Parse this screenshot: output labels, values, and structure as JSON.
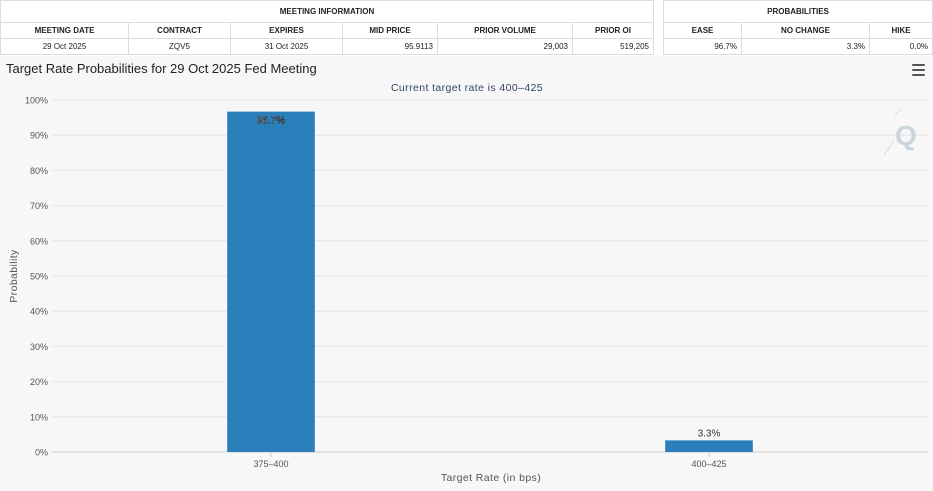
{
  "meeting_info": {
    "header": "MEETING INFORMATION",
    "columns": [
      "MEETING DATE",
      "CONTRACT",
      "EXPIRES",
      "MID PRICE",
      "PRIOR VOLUME",
      "PRIOR OI"
    ],
    "row": [
      "29 Oct 2025",
      "ZQV5",
      "31 Oct 2025",
      "95.9113",
      "29,003",
      "519,205"
    ]
  },
  "probabilities": {
    "header": "PROBABILITIES",
    "columns": [
      "EASE",
      "NO CHANGE",
      "HIKE"
    ],
    "row": [
      "96.7%",
      "3.3%",
      "0.0%"
    ]
  },
  "colors": {
    "bar": "#2a7fba",
    "grid": "#e6e6e6",
    "axis_text": "#555555",
    "subtitle": "#334466"
  },
  "chart_data": {
    "type": "bar",
    "title": "Target Rate Probabilities for 29 Oct 2025 Fed Meeting",
    "subtitle": "Current target rate is 400–425",
    "xlabel": "Target Rate (in bps)",
    "ylabel": "Probability",
    "categories": [
      "375–400",
      "400–425"
    ],
    "values": [
      96.7,
      3.3
    ],
    "data_labels": [
      "96.7%",
      "3.3%"
    ],
    "ylim": [
      0,
      100
    ],
    "yticks": [
      0,
      10,
      20,
      30,
      40,
      50,
      60,
      70,
      80,
      90,
      100
    ],
    "ytick_suffix": "%",
    "grid": true,
    "legend": "none"
  }
}
